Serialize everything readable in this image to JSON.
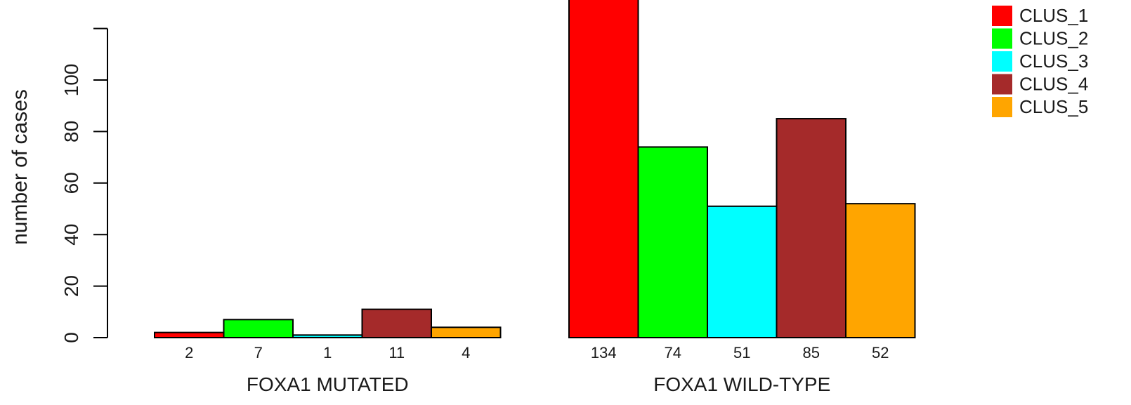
{
  "chart_data": {
    "type": "bar",
    "ylabel": "number of cases",
    "ylim": [
      0,
      120
    ],
    "yticks": [
      0,
      20,
      40,
      60,
      80,
      100
    ],
    "series": [
      {
        "name": "CLUS_1",
        "color": "#ff0000"
      },
      {
        "name": "CLUS_2",
        "color": "#00ff00"
      },
      {
        "name": "CLUS_3",
        "color": "#00ffff"
      },
      {
        "name": "CLUS_4",
        "color": "#a52a2a"
      },
      {
        "name": "CLUS_5",
        "color": "#ffa500"
      }
    ],
    "groups": [
      {
        "label": "FOXA1 MUTATED",
        "values": [
          2,
          7,
          1,
          11,
          4
        ],
        "value_labels": [
          "2",
          "7",
          "1",
          "11",
          "4"
        ]
      },
      {
        "label": "FOXA1 WILD-TYPE",
        "values": [
          134,
          74,
          51,
          85,
          52
        ],
        "value_labels": [
          "134",
          "74",
          "51",
          "85",
          "52"
        ]
      }
    ],
    "legend_position": "top-right",
    "grid": false
  }
}
